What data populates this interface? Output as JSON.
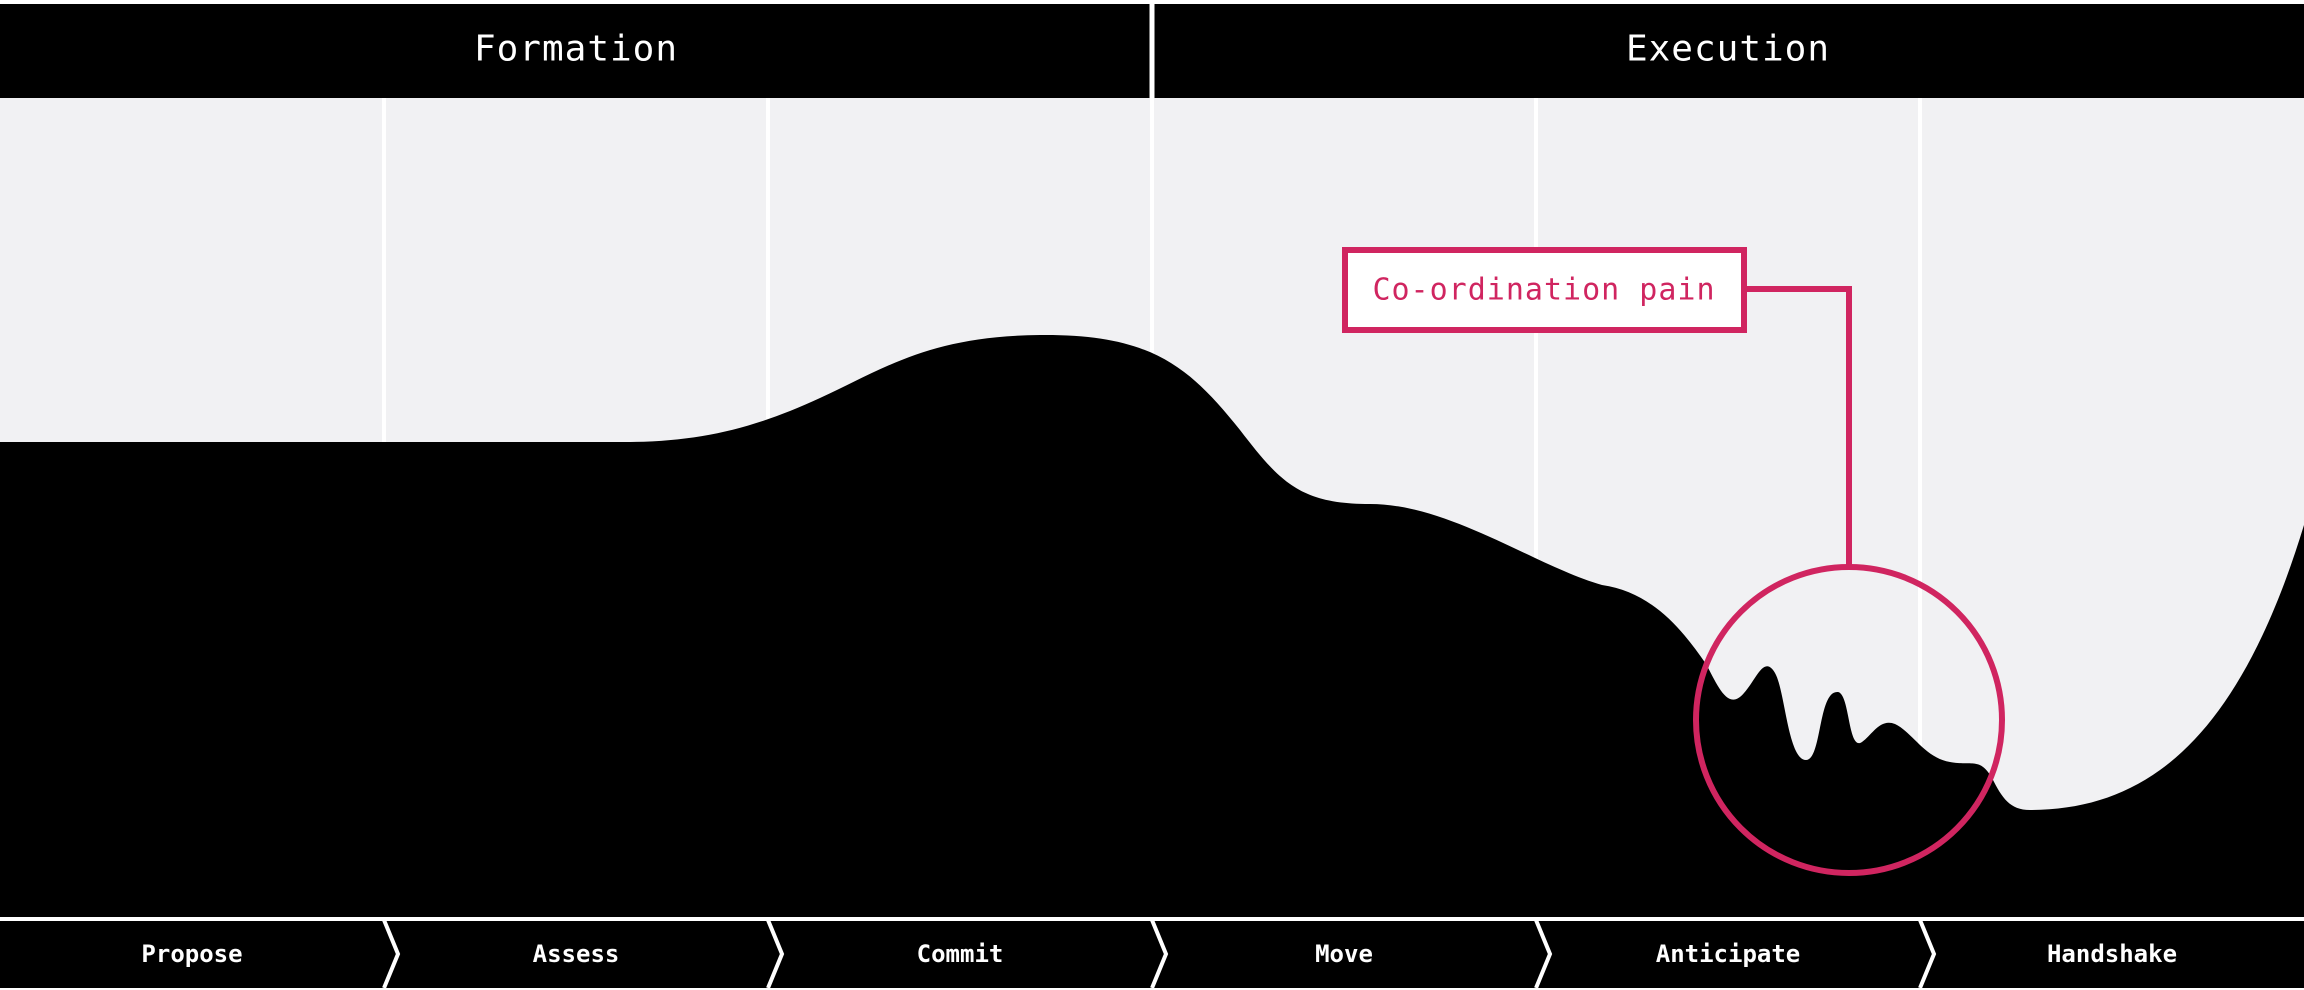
{
  "phases": [
    {
      "label": "Formation"
    },
    {
      "label": "Execution"
    }
  ],
  "steps": [
    {
      "label": "Propose"
    },
    {
      "label": "Assess"
    },
    {
      "label": "Commit"
    },
    {
      "label": "Move"
    },
    {
      "label": "Anticipate"
    },
    {
      "label": "Handshake"
    }
  ],
  "callout": {
    "label": "Co-ordination pain"
  },
  "colors": {
    "background": "#f1f1f3",
    "curve_fill": "#000000",
    "header_fill": "#000000",
    "accent": "#d02560",
    "divider": "#ffffff"
  }
}
